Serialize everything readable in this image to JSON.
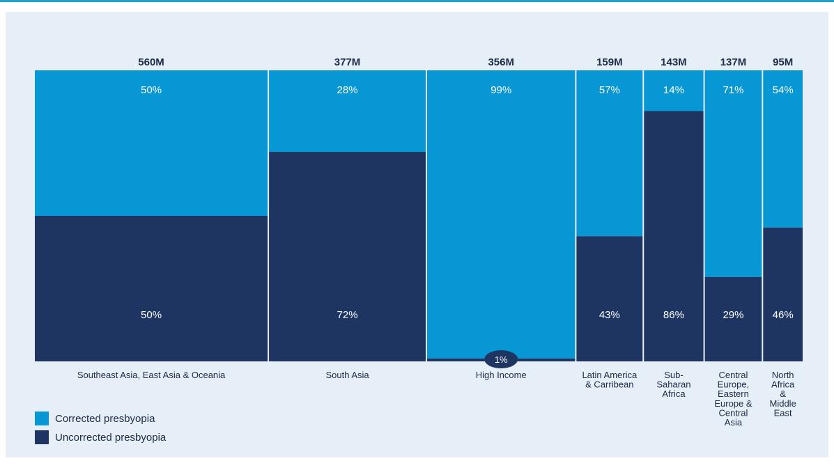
{
  "colors": {
    "corrected": "#0797d4",
    "uncorrected": "#1e3561",
    "background": "#e6eef8",
    "text": "#1d2a44",
    "inner_text": "#ffffff"
  },
  "legend": {
    "corrected_label": "Corrected presbyopia",
    "uncorrected_label": "Uncorrected presbyopia"
  },
  "chart_data": {
    "type": "bar",
    "subtype": "mekko",
    "series": [
      {
        "name": "Corrected presbyopia",
        "values": [
          50,
          28,
          99,
          57,
          14,
          71,
          54
        ]
      },
      {
        "name": "Uncorrected presbyopia",
        "values": [
          50,
          72,
          1,
          43,
          86,
          29,
          46
        ]
      }
    ],
    "totals": [
      560,
      377,
      356,
      159,
      143,
      137,
      95
    ],
    "categories": [
      {
        "label_lines": [
          "Southeast Asia, East Asia & Oceania"
        ],
        "total_label": "560M",
        "corrected_label": "50%",
        "uncorrected_label": "50%"
      },
      {
        "label_lines": [
          "South Asia"
        ],
        "total_label": "377M",
        "corrected_label": "28%",
        "uncorrected_label": "72%"
      },
      {
        "label_lines": [
          "High Income"
        ],
        "total_label": "356M",
        "corrected_label": "99%",
        "uncorrected_label": "1%"
      },
      {
        "label_lines": [
          "Latin America",
          "& Carribean"
        ],
        "total_label": "159M",
        "corrected_label": "57%",
        "uncorrected_label": "43%"
      },
      {
        "label_lines": [
          "Sub-",
          "Saharan",
          "Africa"
        ],
        "total_label": "143M",
        "corrected_label": "14%",
        "uncorrected_label": "86%"
      },
      {
        "label_lines": [
          "Central",
          "Europe,",
          "Eastern",
          "Europe &",
          "Central",
          "Asia"
        ],
        "total_label": "137M",
        "corrected_label": "71%",
        "uncorrected_label": "29%"
      },
      {
        "label_lines": [
          "North",
          "Africa",
          "&",
          "Middle",
          "East"
        ],
        "total_label": "95M",
        "corrected_label": "54%",
        "uncorrected_label": "46%"
      }
    ],
    "ylim": [
      0,
      100
    ],
    "grid": false,
    "legend_position": "bottom-left"
  }
}
